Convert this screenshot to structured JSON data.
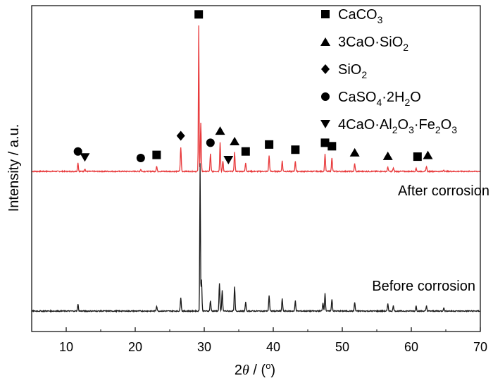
{
  "chart_data": {
    "type": "line",
    "title": "",
    "xlabel": "2θ / (°)",
    "xlabel_parts": [
      "2",
      "θ",
      " / (",
      "o",
      ")"
    ],
    "ylabel": "Intensity / a.u.",
    "xlim": [
      5,
      70
    ],
    "xticks": [
      10,
      20,
      30,
      40,
      50,
      60,
      70
    ],
    "grid": false,
    "colors": {
      "after": "#e8393b",
      "before": "#1a1a1a",
      "axis": "#000000",
      "marker": "#000000"
    },
    "series": [
      {
        "name": "After corrosion",
        "label": "After corrosion",
        "baseline": 0.36,
        "peaks": [
          {
            "x": 11.7,
            "h": 0.05
          },
          {
            "x": 12.7,
            "h": 0.015
          },
          {
            "x": 20.8,
            "h": 0.012
          },
          {
            "x": 23.1,
            "h": 0.03
          },
          {
            "x": 26.6,
            "h": 0.14
          },
          {
            "x": 29.2,
            "h": 0.84
          },
          {
            "x": 29.5,
            "h": 0.28
          },
          {
            "x": 30.9,
            "h": 0.1
          },
          {
            "x": 32.3,
            "h": 0.17
          },
          {
            "x": 32.7,
            "h": 0.06
          },
          {
            "x": 34.4,
            "h": 0.11
          },
          {
            "x": 36.0,
            "h": 0.05
          },
          {
            "x": 39.4,
            "h": 0.09
          },
          {
            "x": 41.3,
            "h": 0.06
          },
          {
            "x": 43.2,
            "h": 0.06
          },
          {
            "x": 47.5,
            "h": 0.1
          },
          {
            "x": 48.5,
            "h": 0.08
          },
          {
            "x": 51.8,
            "h": 0.045
          },
          {
            "x": 56.6,
            "h": 0.025
          },
          {
            "x": 57.4,
            "h": 0.02
          },
          {
            "x": 60.7,
            "h": 0.02
          },
          {
            "x": 62.2,
            "h": 0.03
          },
          {
            "x": 64.7,
            "h": 0.01
          }
        ]
      },
      {
        "name": "Before corrosion",
        "label": "Before corrosion",
        "baseline": 0.0,
        "peaks": [
          {
            "x": 11.7,
            "h": 0.04
          },
          {
            "x": 23.1,
            "h": 0.03
          },
          {
            "x": 26.6,
            "h": 0.08
          },
          {
            "x": 29.4,
            "h": 0.85
          },
          {
            "x": 29.6,
            "h": 0.18
          },
          {
            "x": 30.9,
            "h": 0.06
          },
          {
            "x": 32.2,
            "h": 0.16
          },
          {
            "x": 32.6,
            "h": 0.12
          },
          {
            "x": 34.4,
            "h": 0.14
          },
          {
            "x": 36.0,
            "h": 0.05
          },
          {
            "x": 39.4,
            "h": 0.09
          },
          {
            "x": 41.3,
            "h": 0.07
          },
          {
            "x": 43.2,
            "h": 0.06
          },
          {
            "x": 47.2,
            "h": 0.05
          },
          {
            "x": 47.5,
            "h": 0.1
          },
          {
            "x": 48.5,
            "h": 0.07
          },
          {
            "x": 51.8,
            "h": 0.05
          },
          {
            "x": 56.6,
            "h": 0.04
          },
          {
            "x": 57.4,
            "h": 0.03
          },
          {
            "x": 60.7,
            "h": 0.03
          },
          {
            "x": 62.2,
            "h": 0.03
          },
          {
            "x": 64.7,
            "h": 0.02
          }
        ]
      }
    ],
    "legend": {
      "position": "top-right",
      "items": [
        {
          "phase": "CaCO3",
          "text": "CaCO3",
          "marker": "square",
          "parts": [
            {
              "t": "CaCO"
            },
            {
              "t": "3",
              "sub": true
            }
          ]
        },
        {
          "phase": "3CaO·SiO2",
          "text": "3CaO·SiO2",
          "marker": "triangle-up",
          "parts": [
            {
              "t": "3CaO·SiO"
            },
            {
              "t": "2",
              "sub": true
            }
          ]
        },
        {
          "phase": "SiO2",
          "text": "SiO2",
          "marker": "diamond",
          "parts": [
            {
              "t": "SiO"
            },
            {
              "t": "2",
              "sub": true
            }
          ]
        },
        {
          "phase": "CaSO4·2H2O",
          "text": "CaSO4·2H2O",
          "marker": "circle",
          "parts": [
            {
              "t": "CaSO"
            },
            {
              "t": "4",
              "sub": true
            },
            {
              "t": "·2H"
            },
            {
              "t": "2",
              "sub": true
            },
            {
              "t": "O"
            }
          ]
        },
        {
          "phase": "4CaO·Al2O3·Fe2O3",
          "text": "4CaO·Al2O3·Fe2O3",
          "marker": "triangle-down",
          "parts": [
            {
              "t": "4CaO·Al"
            },
            {
              "t": "2",
              "sub": true
            },
            {
              "t": "O"
            },
            {
              "t": "3",
              "sub": true
            },
            {
              "t": "·Fe"
            },
            {
              "t": "2",
              "sub": true
            },
            {
              "t": "O"
            },
            {
              "t": "3",
              "sub": true
            }
          ]
        }
      ]
    },
    "phase_markers": [
      {
        "x": 11.7,
        "marker": "circle",
        "phase": "CaSO4·2H2O"
      },
      {
        "x": 12.7,
        "marker": "triangle-down",
        "phase": "4CaO·Al2O3·Fe2O3"
      },
      {
        "x": 20.8,
        "marker": "circle",
        "phase": "CaSO4·2H2O"
      },
      {
        "x": 23.1,
        "marker": "square",
        "phase": "CaCO3"
      },
      {
        "x": 26.6,
        "marker": "diamond",
        "phase": "SiO2"
      },
      {
        "x": 29.2,
        "marker": "square",
        "phase": "CaCO3"
      },
      {
        "x": 30.9,
        "marker": "circle",
        "phase": "CaSO4·2H2O"
      },
      {
        "x": 32.3,
        "marker": "triangle-up",
        "phase": "3CaO·SiO2"
      },
      {
        "x": 33.5,
        "marker": "triangle-down",
        "phase": "4CaO·Al2O3·Fe2O3"
      },
      {
        "x": 34.4,
        "marker": "triangle-up",
        "phase": "3CaO·SiO2"
      },
      {
        "x": 36.0,
        "marker": "square",
        "phase": "CaCO3"
      },
      {
        "x": 39.4,
        "marker": "square",
        "phase": "CaCO3"
      },
      {
        "x": 43.2,
        "marker": "square",
        "phase": "CaCO3"
      },
      {
        "x": 47.5,
        "marker": "square",
        "phase": "CaCO3"
      },
      {
        "x": 48.5,
        "marker": "square",
        "phase": "CaCO3"
      },
      {
        "x": 51.8,
        "marker": "triangle-up",
        "phase": "3CaO·SiO2"
      },
      {
        "x": 56.6,
        "marker": "triangle-up",
        "phase": "3CaO·SiO2"
      },
      {
        "x": 60.9,
        "marker": "square",
        "phase": "CaCO3"
      },
      {
        "x": 62.4,
        "marker": "triangle-up",
        "phase": "3CaO·SiO2"
      }
    ]
  }
}
